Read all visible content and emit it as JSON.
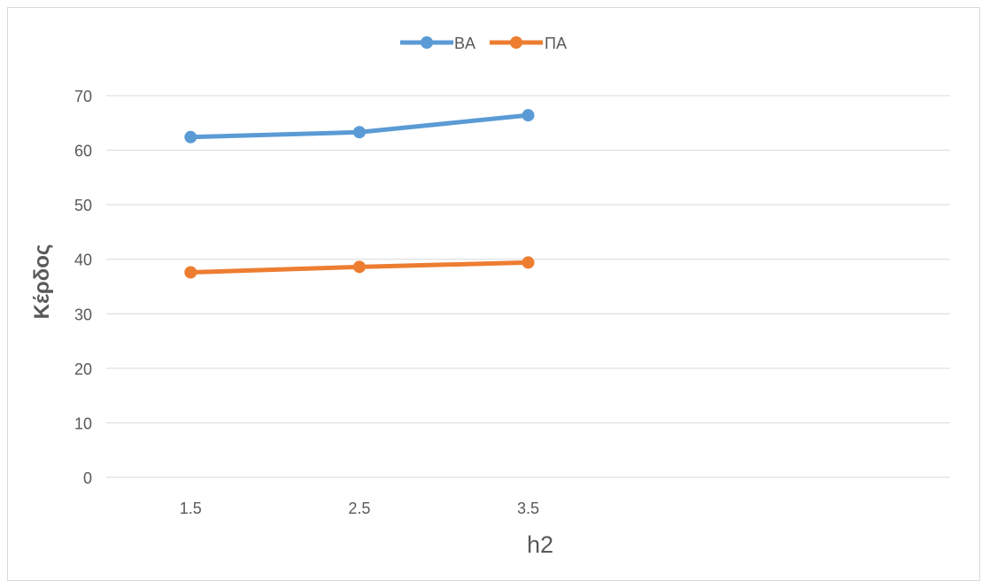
{
  "chart_data": {
    "type": "line",
    "categories": [
      "1.5",
      "2.5",
      "3.5",
      "",
      ""
    ],
    "series": [
      {
        "name": "ΒΑ",
        "color": "#5b9bd5",
        "values": [
          62.4,
          63.3,
          66.4,
          null,
          null
        ]
      },
      {
        "name": "ΠΑ",
        "color": "#ed7d31",
        "values": [
          37.6,
          38.6,
          39.4,
          null,
          null
        ]
      }
    ],
    "title": "",
    "xlabel": "h2",
    "ylabel": "Κέρδος",
    "ylim": [
      0,
      70
    ],
    "yticks": [
      0,
      10,
      20,
      30,
      40,
      50,
      60,
      70
    ],
    "grid": true,
    "legend_position": "top"
  }
}
